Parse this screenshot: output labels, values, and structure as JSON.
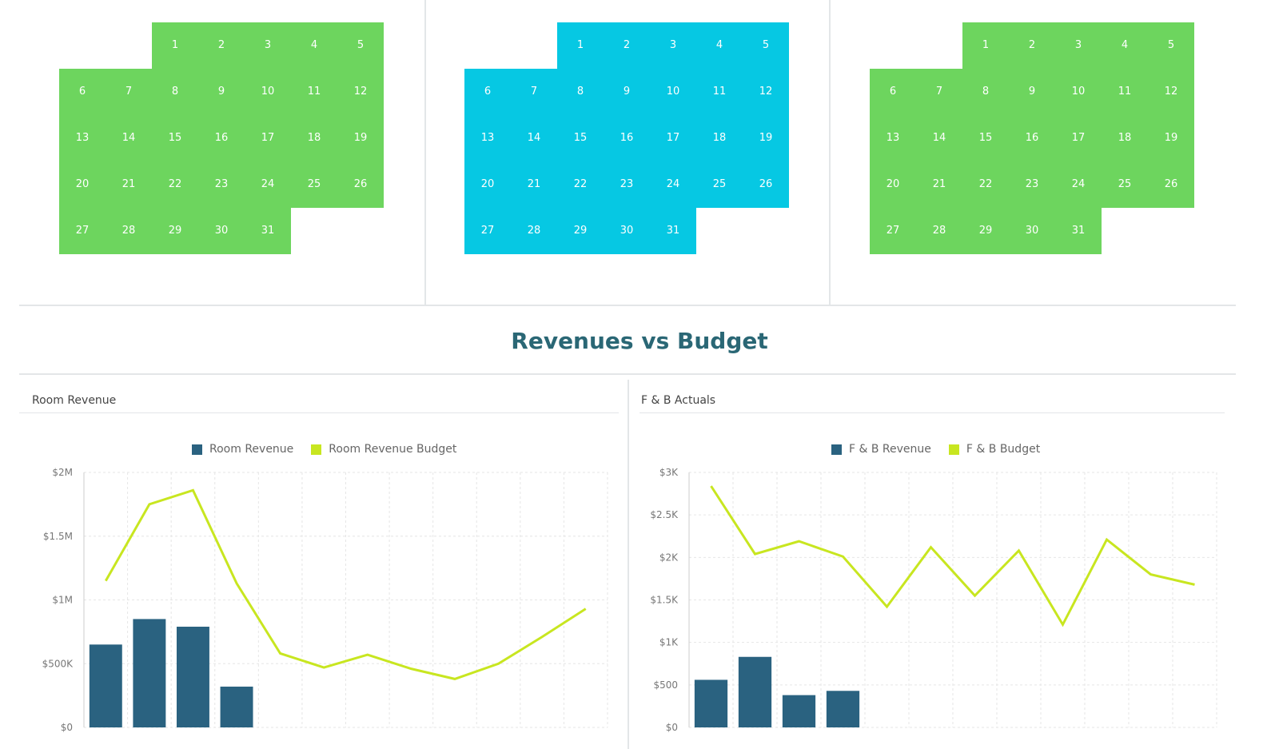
{
  "calendars": [
    {
      "color": "#6dd55e",
      "start_offset": 2,
      "days": 31
    },
    {
      "color": "#06c8e3",
      "start_offset": 2,
      "days": 31
    },
    {
      "color": "#6dd55e",
      "start_offset": 2,
      "days": 31
    }
  ],
  "section_title": "Revenues vs Budget",
  "charts": {
    "room": {
      "title": "Room Revenue",
      "legend": [
        {
          "label": "Room Revenue",
          "color": "#2a6280"
        },
        {
          "label": "Room Revenue Budget",
          "color": "#c8e620"
        }
      ]
    },
    "fb": {
      "title": "F & B Actuals",
      "legend": [
        {
          "label": "F & B Revenue",
          "color": "#2a6280"
        },
        {
          "label": "F & B Budget",
          "color": "#c8e620"
        }
      ]
    }
  },
  "chart_data": [
    {
      "type": "bar",
      "title": "Room Revenue",
      "y_ticks": [
        "$0",
        "$500K",
        "$1M",
        "$1.5M",
        "$2M"
      ],
      "ylim": [
        0,
        2000000
      ],
      "n_points": 12,
      "series": [
        {
          "name": "Room Revenue",
          "kind": "bar",
          "color": "#2a6280",
          "values": [
            650000,
            850000,
            790000,
            320000,
            null,
            null,
            null,
            null,
            null,
            null,
            null,
            null
          ]
        },
        {
          "name": "Room Revenue Budget",
          "kind": "line",
          "color": "#c8e620",
          "values": [
            1150000,
            1750000,
            1860000,
            1130000,
            580000,
            470000,
            570000,
            460000,
            380000,
            500000,
            710000,
            930000
          ]
        }
      ]
    },
    {
      "type": "bar",
      "title": "F & B Actuals",
      "y_ticks": [
        "$0",
        "$500",
        "$1K",
        "$1.5K",
        "$2K",
        "$2.5K",
        "$3K"
      ],
      "ylim": [
        0,
        3000
      ],
      "n_points": 12,
      "series": [
        {
          "name": "F & B Revenue",
          "kind": "bar",
          "color": "#2a6280",
          "values": [
            560,
            830,
            380,
            430,
            null,
            null,
            null,
            null,
            null,
            null,
            null,
            null
          ]
        },
        {
          "name": "F & B Budget",
          "kind": "line",
          "color": "#c8e620",
          "values": [
            2840,
            2040,
            2190,
            2010,
            1420,
            2120,
            1550,
            2080,
            1210,
            2210,
            1800,
            1680
          ]
        }
      ]
    }
  ]
}
